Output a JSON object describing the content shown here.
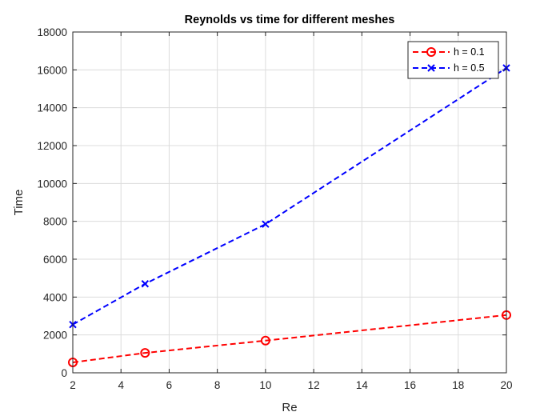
{
  "chart_data": {
    "type": "line",
    "title": "Reynolds vs time for different meshes",
    "xlabel": "Re",
    "ylabel": "Time",
    "xlim": [
      2,
      20
    ],
    "ylim": [
      0,
      18000
    ],
    "x_ticks": [
      2,
      4,
      6,
      8,
      10,
      12,
      14,
      16,
      18,
      20
    ],
    "y_ticks": [
      0,
      2000,
      4000,
      6000,
      8000,
      10000,
      12000,
      14000,
      16000,
      18000
    ],
    "grid": true,
    "legend_position": "top-right",
    "x": [
      2,
      5,
      10,
      20
    ],
    "series": [
      {
        "name": "h = 0.1",
        "values": [
          550,
          1050,
          1700,
          3050
        ],
        "color": "#ff0000",
        "marker": "circle",
        "line_style": "dashed"
      },
      {
        "name": "h = 0.5",
        "values": [
          2550,
          4700,
          7850,
          16100
        ],
        "color": "#0000ff",
        "marker": "x",
        "line_style": "dashed"
      }
    ]
  }
}
